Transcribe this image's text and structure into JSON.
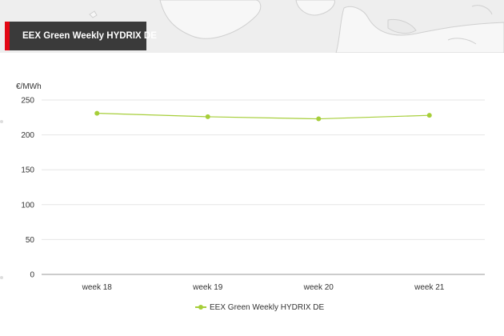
{
  "header": {
    "title": "EEX Green Weekly HYDRIX DE"
  },
  "colors": {
    "series": "#a6ce39",
    "accent": "#e30613",
    "title_bg": "#3a3a3a",
    "grid": "#e6e6e6"
  },
  "chart_data": {
    "type": "line",
    "title": "",
    "unit_label": "€/MWh",
    "xlabel": "",
    "ylabel": "€/MWh",
    "categories": [
      "week 18",
      "week 19",
      "week 20",
      "week 21"
    ],
    "series": [
      {
        "name": "EEX Green Weekly HYDRIX DE",
        "values": [
          231,
          226,
          223,
          228
        ]
      }
    ],
    "ylim": [
      0,
      250
    ],
    "yticks": [
      0,
      50,
      100,
      150,
      200,
      250
    ],
    "grid": true,
    "legend_position": "bottom-center"
  }
}
